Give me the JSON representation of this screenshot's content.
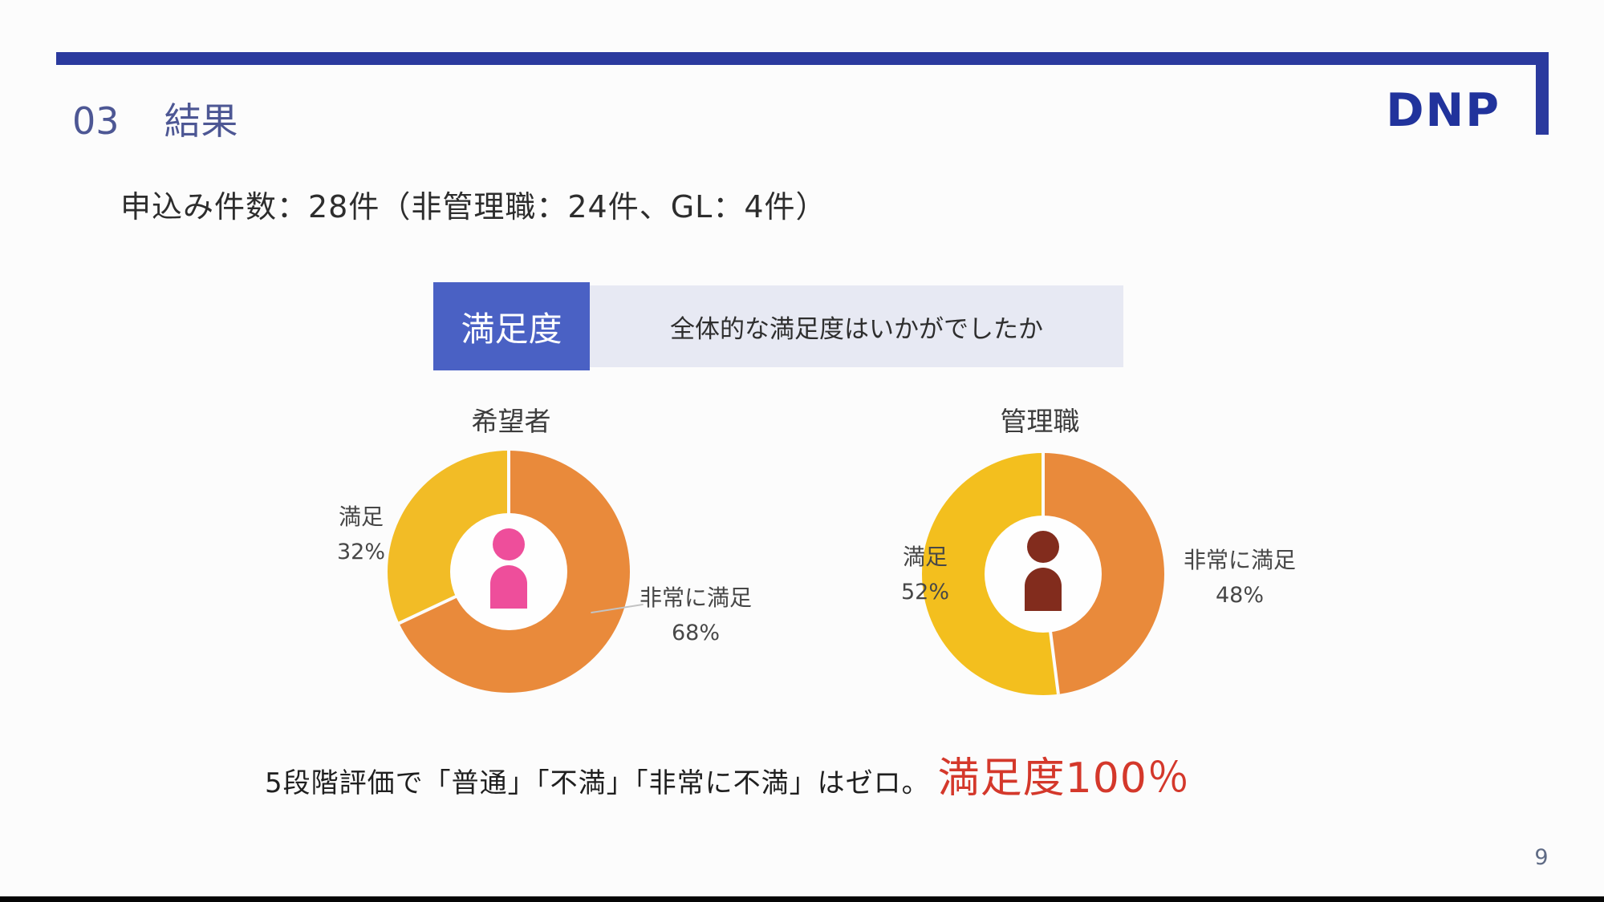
{
  "page": {
    "section_number": "03",
    "section_title": "結果",
    "logo": "DNP",
    "page_number": "9",
    "accent_navy": "#2b3a9e"
  },
  "subtitle": "申込み件数：28件（非管理職：24件、GL：4件）",
  "question_header": {
    "label": "満足度",
    "text": "全体的な満足度はいかがでしたか",
    "label_bg": "#4a61c4",
    "text_bg": "#e7e9f3"
  },
  "note": {
    "black_text": "5段階評価で「普通」「不満」「非常に不満」はゼロ。",
    "red_text": "満足度100％",
    "red_color": "#d4382b"
  },
  "chart_data": [
    {
      "type": "pie",
      "subtype": "donut",
      "title": "希望者",
      "slices": [
        {
          "label": "非常に満足",
          "value": 68,
          "pct_label": "68%",
          "color": "#e98a3b"
        },
        {
          "label": "満足",
          "value": 32,
          "pct_label": "32%",
          "color": "#f2bc26"
        }
      ],
      "start_angle_deg": 0,
      "direction": "clockwise",
      "center_icon": "person",
      "icon_color": "#ee4e9b",
      "legend": "none"
    },
    {
      "type": "pie",
      "subtype": "donut",
      "title": "管理職",
      "slices": [
        {
          "label": "非常に満足",
          "value": 48,
          "pct_label": "48%",
          "color": "#e98a3b"
        },
        {
          "label": "満足",
          "value": 52,
          "pct_label": "52%",
          "color": "#f3bf1e"
        }
      ],
      "start_angle_deg": 0,
      "direction": "clockwise",
      "center_icon": "person",
      "icon_color": "#822c1d",
      "legend": "none"
    }
  ]
}
